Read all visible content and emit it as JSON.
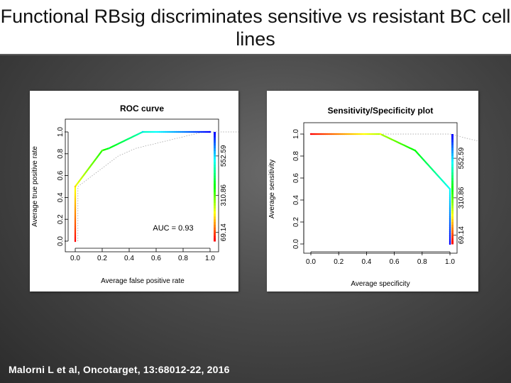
{
  "slide": {
    "title": "Functional RBsig discriminates sensitive vs resistant BC cell lines",
    "citation": "Malorni L et al, Oncotarget, 13:68012-22, 2016",
    "colors": {
      "title_bg": "#ffffff",
      "background": "#4a4a4a",
      "citation": "#ffffff"
    }
  },
  "chart_data": [
    {
      "type": "line",
      "title": "ROC curve",
      "xlabel": "Average false positive rate",
      "ylabel": "Average true positive rate",
      "xlim": [
        0,
        1
      ],
      "ylim": [
        0,
        1
      ],
      "x_ticks": [
        "0.0",
        "0.2",
        "0.4",
        "0.6",
        "0.8",
        "1.0"
      ],
      "y_ticks": [
        "0.0",
        "0.2",
        "0.4",
        "0.6",
        "0.8",
        "1.0"
      ],
      "series": [
        {
          "name": "ROC",
          "x": [
            0.0,
            0.0,
            0.2,
            0.25,
            0.5,
            1.0
          ],
          "y": [
            0.0,
            0.5,
            0.83,
            0.85,
            1.0,
            1.0
          ]
        }
      ],
      "annotation": "AUC = 0.93",
      "colorbar": {
        "label_values": [
          "69.14",
          "310.86",
          "552.59"
        ],
        "colors": [
          "#ff0000",
          "#ffff00",
          "#00ff00",
          "#00ffff",
          "#0000ff"
        ]
      }
    },
    {
      "type": "line",
      "title": "Sensitivity/Specificity plot",
      "xlabel": "Average specificity",
      "ylabel": "Average sensitivity",
      "xlim": [
        0,
        1
      ],
      "ylim": [
        0,
        1
      ],
      "x_ticks": [
        "0.0",
        "0.2",
        "0.4",
        "0.6",
        "0.8",
        "1.0"
      ],
      "y_ticks": [
        "0.0",
        "0.2",
        "0.4",
        "0.6",
        "0.8",
        "1.0"
      ],
      "series": [
        {
          "name": "Sensitivity vs specificity",
          "x": [
            0.0,
            0.5,
            0.75,
            1.0,
            1.0
          ],
          "y": [
            1.0,
            1.0,
            0.85,
            0.5,
            0.0
          ]
        }
      ],
      "colorbar": {
        "label_values": [
          "69.14",
          "310.86",
          "552.59"
        ],
        "colors": [
          "#ff0000",
          "#ffff00",
          "#00ff00",
          "#00ffff",
          "#0000ff"
        ]
      }
    }
  ]
}
